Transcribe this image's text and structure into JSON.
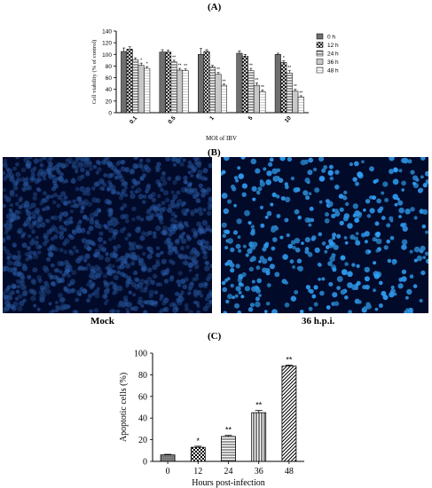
{
  "panels": {
    "A": "(A)",
    "B": "(B)",
    "C": "(C)"
  },
  "micrographs": {
    "left_caption": "Mock",
    "right_caption": "36 h.p.i."
  },
  "chart_data": [
    {
      "type": "bar",
      "title": "",
      "xlabel": "MOI of IBV",
      "ylabel": "Cell viability (% of control)",
      "ylim": [
        0,
        140
      ],
      "yticks": [
        0,
        20,
        40,
        60,
        80,
        100,
        120,
        140
      ],
      "categories": [
        "0.1",
        "0.5",
        "1",
        "5",
        "10"
      ],
      "legend_position": "right",
      "series": [
        {
          "name": "0 h",
          "values": [
            105,
            104,
            100,
            102,
            100
          ],
          "errors": [
            6,
            4,
            10,
            4,
            2
          ],
          "pattern": "darkgray",
          "sig": [
            "",
            "",
            "",
            "",
            ""
          ]
        },
        {
          "name": "12 h",
          "values": [
            109,
            104,
            105,
            97,
            86
          ],
          "errors": [
            4,
            3,
            3,
            3,
            3
          ],
          "pattern": "cross",
          "sig": [
            "",
            "",
            "",
            "",
            "*"
          ]
        },
        {
          "name": "24 h",
          "values": [
            91,
            87,
            78,
            72,
            68
          ],
          "errors": [
            3,
            3,
            3,
            4,
            4
          ],
          "pattern": "hlines",
          "sig": [
            "",
            "**",
            "",
            "**",
            "**"
          ]
        },
        {
          "name": "36 h",
          "values": [
            81,
            73,
            66,
            47,
            37
          ],
          "errors": [
            4,
            3,
            3,
            4,
            3
          ],
          "pattern": "lightgray",
          "sig": [
            "*",
            "**",
            "**",
            "**",
            "**"
          ]
        },
        {
          "name": "48 h",
          "values": [
            76,
            72,
            47,
            36,
            27
          ],
          "errors": [
            3,
            3,
            2,
            3,
            2
          ],
          "pattern": "whitestripe",
          "sig": [
            "*",
            "**",
            "**",
            "**",
            "**"
          ]
        }
      ]
    },
    {
      "type": "bar",
      "title": "",
      "xlabel": "Hours post-infection",
      "ylabel": "Apoptotic cells (%)",
      "ylim": [
        0,
        100
      ],
      "yticks": [
        0,
        20,
        40,
        60,
        80,
        100
      ],
      "categories": [
        "0",
        "12",
        "24",
        "36",
        "48"
      ],
      "values": [
        6,
        13,
        23,
        45,
        88
      ],
      "errors": [
        0.5,
        1,
        1,
        2,
        1
      ],
      "patterns": [
        "dots",
        "checker",
        "hlines",
        "vlines",
        "diag"
      ],
      "sig": [
        "",
        "*",
        "**",
        "**",
        "**"
      ]
    }
  ]
}
